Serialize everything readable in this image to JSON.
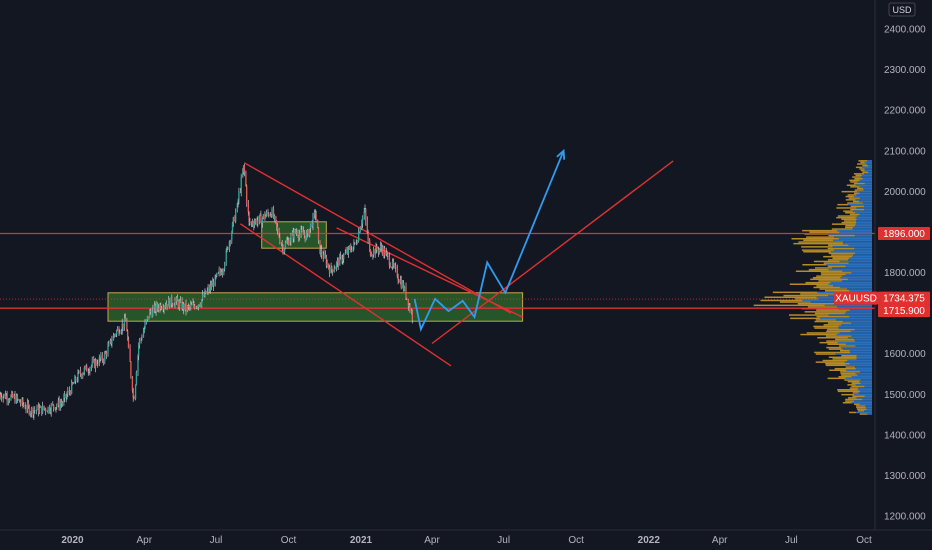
{
  "chart_data": {
    "type": "line",
    "symbol": "XAUUSD",
    "currency": "USD",
    "colors": {
      "background": "#131722",
      "price_line": "#d9d9d9",
      "trend_lines": "#e03131",
      "zones_fill": "#2e6b2e",
      "zones_border": "#c8a64a",
      "projection": "#2f9cf0",
      "volume_profile_up": "#2f7fd6",
      "volume_profile_down": "#d4a028"
    },
    "ylim": [
      1170,
      2450
    ],
    "xlim": [
      "2019-10-01",
      "2022-10-15"
    ],
    "y_ticks": [
      "2400.000",
      "2300.000",
      "2200.000",
      "2100.000",
      "2000.000",
      "1900.000",
      "1800.000",
      "1700.000",
      "1600.000",
      "1500.000",
      "1400.000",
      "1300.000",
      "1200.000"
    ],
    "x_ticks": [
      {
        "label": "2020",
        "date": "2020-01-01",
        "bold": true
      },
      {
        "label": "Apr",
        "date": "2020-04-01",
        "bold": false
      },
      {
        "label": "Jul",
        "date": "2020-07-01",
        "bold": false
      },
      {
        "label": "Oct",
        "date": "2020-10-01",
        "bold": false
      },
      {
        "label": "2021",
        "date": "2021-01-01",
        "bold": true
      },
      {
        "label": "Apr",
        "date": "2021-04-01",
        "bold": false
      },
      {
        "label": "Jul",
        "date": "2021-07-01",
        "bold": false
      },
      {
        "label": "Oct",
        "date": "2021-10-01",
        "bold": false
      },
      {
        "label": "2022",
        "date": "2022-01-01",
        "bold": true
      },
      {
        "label": "Apr",
        "date": "2022-04-01",
        "bold": false
      },
      {
        "label": "Jul",
        "date": "2022-07-01",
        "bold": false
      },
      {
        "label": "Oct",
        "date": "2022-10-01",
        "bold": false
      }
    ],
    "price_series": {
      "x": [
        "2019-10-01",
        "2019-10-20",
        "2019-11-10",
        "2019-12-01",
        "2019-12-20",
        "2020-01-10",
        "2020-01-25",
        "2020-02-10",
        "2020-02-24",
        "2020-03-09",
        "2020-03-19",
        "2020-03-25",
        "2020-04-08",
        "2020-04-22",
        "2020-05-10",
        "2020-05-25",
        "2020-06-10",
        "2020-06-25",
        "2020-07-10",
        "2020-07-28",
        "2020-08-06",
        "2020-08-12",
        "2020-08-25",
        "2020-09-10",
        "2020-09-24",
        "2020-10-10",
        "2020-10-25",
        "2020-11-05",
        "2020-11-09",
        "2020-11-24",
        "2020-12-10",
        "2020-12-25",
        "2021-01-06",
        "2021-01-12",
        "2021-01-28",
        "2021-02-15",
        "2021-02-25",
        "2021-03-08"
      ],
      "y": [
        1500,
        1490,
        1460,
        1465,
        1480,
        1550,
        1570,
        1590,
        1650,
        1680,
        1480,
        1620,
        1700,
        1720,
        1730,
        1710,
        1725,
        1765,
        1810,
        1960,
        2065,
        1920,
        1930,
        1950,
        1860,
        1900,
        1890,
        1950,
        1860,
        1805,
        1840,
        1870,
        1955,
        1850,
        1860,
        1800,
        1760,
        1690
      ]
    },
    "price_notes": "Approximate daily close path read from candlesticks",
    "trend_lines": [
      {
        "x": [
          "2020-08-06",
          "2021-07-10"
        ],
        "y": [
          2070,
          1700
        ]
      },
      {
        "x": [
          "2020-08-01",
          "2021-04-25"
        ],
        "y": [
          1920,
          1570
        ]
      },
      {
        "x": [
          "2020-12-01",
          "2021-07-25"
        ],
        "y": [
          1910,
          1690
        ]
      },
      {
        "x": [
          "2021-04-01",
          "2022-02-01"
        ],
        "y": [
          1625,
          2075
        ]
      }
    ],
    "horizontal_lines": [
      1896.0,
      1712.0
    ],
    "zones": [
      {
        "x": [
          "2020-02-15",
          "2021-07-25"
        ],
        "y": [
          1680,
          1750
        ]
      },
      {
        "x": [
          "2020-08-28",
          "2020-11-18"
        ],
        "y": [
          1860,
          1925
        ]
      }
    ],
    "projection_path": {
      "x": [
        "2021-03-10",
        "2021-03-18",
        "2021-04-05",
        "2021-04-22",
        "2021-05-10",
        "2021-05-25",
        "2021-06-10",
        "2021-07-03",
        "2021-09-15"
      ],
      "y": [
        1735,
        1660,
        1735,
        1705,
        1730,
        1690,
        1825,
        1750,
        2100
      ]
    },
    "badges": [
      {
        "label": "1896.000",
        "value": 1896.0,
        "color": "#e03131"
      },
      {
        "label": "XAUUSD",
        "value": 1734.375,
        "color": "#e03131"
      },
      {
        "label": "1734.375",
        "value": 1734.375,
        "color": "#e03131"
      },
      {
        "label": "1715.900",
        "value": 1715.9,
        "color": "#e03131"
      }
    ]
  }
}
